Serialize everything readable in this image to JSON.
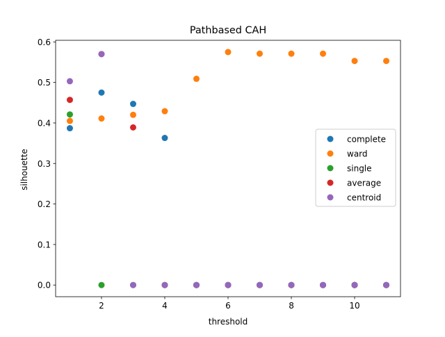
{
  "chart_data": {
    "type": "scatter",
    "title": "Pathbased CAH",
    "xlabel": "threshold",
    "ylabel": "silhouette",
    "xlim": [
      0.55,
      11.45
    ],
    "ylim": [
      -0.0288,
      0.604
    ],
    "x_ticks": [
      2,
      4,
      6,
      8,
      10
    ],
    "x_tick_labels": [
      "2",
      "4",
      "6",
      "8",
      "10"
    ],
    "y_ticks": [
      0.0,
      0.1,
      0.2,
      0.3,
      0.4,
      0.5,
      0.6
    ],
    "y_tick_labels": [
      "0.0",
      "0.1",
      "0.2",
      "0.3",
      "0.4",
      "0.5",
      "0.6"
    ],
    "grid": false,
    "legend_position": "center-right",
    "series": [
      {
        "name": "complete",
        "color": "#1f77b4",
        "x": [
          1,
          2,
          3,
          4,
          5,
          6,
          7,
          8,
          9,
          10,
          11
        ],
        "y": [
          0.387,
          0.475,
          0.447,
          0.363,
          0.0,
          0.0,
          0.0,
          0.0,
          0.0,
          0.0,
          0.0
        ]
      },
      {
        "name": "ward",
        "color": "#ff7f0e",
        "x": [
          1,
          2,
          3,
          4,
          5,
          6,
          7,
          8,
          9,
          10,
          11
        ],
        "y": [
          0.405,
          0.411,
          0.42,
          0.429,
          0.509,
          0.575,
          0.571,
          0.571,
          0.571,
          0.553,
          0.553
        ]
      },
      {
        "name": "single",
        "color": "#2ca02c",
        "x": [
          1,
          2,
          3,
          4,
          5,
          6,
          7,
          8,
          9,
          10,
          11
        ],
        "y": [
          0.421,
          0.0,
          0.0,
          0.0,
          0.0,
          0.0,
          0.0,
          0.0,
          0.0,
          0.0,
          0.0
        ]
      },
      {
        "name": "average",
        "color": "#d62728",
        "x": [
          1,
          2,
          3,
          4,
          5,
          6,
          7,
          8,
          9,
          10,
          11
        ],
        "y": [
          0.457,
          0.57,
          0.389,
          0.0,
          0.0,
          0.0,
          0.0,
          0.0,
          0.0,
          0.0,
          0.0
        ]
      },
      {
        "name": "centroid",
        "color": "#9467bd",
        "x": [
          1,
          2,
          3,
          4,
          5,
          6,
          7,
          8,
          9,
          10,
          11
        ],
        "y": [
          0.503,
          0.57,
          0.0,
          0.0,
          0.0,
          0.0,
          0.0,
          0.0,
          0.0,
          0.0,
          0.0
        ]
      }
    ]
  }
}
